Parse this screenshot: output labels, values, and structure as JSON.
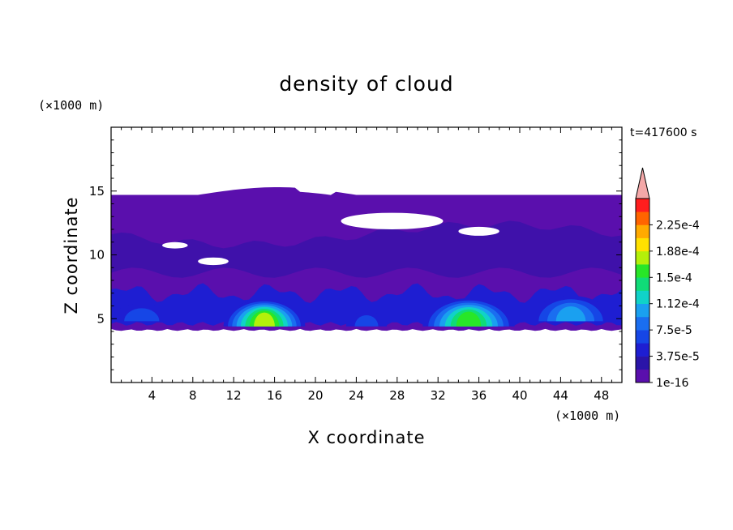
{
  "chart_data": {
    "type": "heatmap",
    "title": "density of cloud",
    "time_label": "t=417600 s",
    "xlabel": "X coordinate",
    "ylabel": "Z coordinate",
    "x_unit": "(×1000 m)",
    "y_unit": "(×1000 m)",
    "xlim": [
      0,
      50
    ],
    "ylim": [
      0,
      20
    ],
    "x_ticks": [
      4,
      8,
      12,
      16,
      20,
      24,
      28,
      32,
      36,
      40,
      44,
      48
    ],
    "x_tick_labels": [
      "4",
      "8",
      "12",
      "16",
      "20",
      "24",
      "28",
      "32",
      "36",
      "40",
      "44",
      "48"
    ],
    "y_ticks": [
      5,
      10,
      15
    ],
    "y_tick_labels": [
      "5",
      "10",
      "15"
    ],
    "grid": false,
    "colorbar": {
      "levels": [
        1e-16,
        1.875e-05,
        3.75e-05,
        5.625e-05,
        7.5e-05,
        9.375e-05,
        0.0001125,
        0.00013125,
        0.00015,
        0.00016875,
        0.0001875,
        0.00020625,
        0.000225,
        0.00024375
      ],
      "labels": [
        "1e-16",
        "3.75e-5",
        "7.5e-5",
        "1.12e-4",
        "1.5e-4",
        "1.88e-4",
        "2.25e-4"
      ],
      "label_levels": [
        0,
        2,
        4,
        6,
        8,
        10,
        12
      ],
      "colors": [
        "#5a0fad",
        "#2a14a8",
        "#1e1ed2",
        "#1646e6",
        "#1a6ef0",
        "#1aa0f0",
        "#10d2c8",
        "#10dc78",
        "#28e628",
        "#b4f00a",
        "#ffe100",
        "#ffaa00",
        "#ff6400",
        "#ff1e1e"
      ],
      "overflow_color": "#f4a8a8"
    },
    "cloud_layer": {
      "base_km": 4.2,
      "top_km": 14.7,
      "clear_gaps": [
        {
          "x": [
            22.5,
            32.5
          ],
          "z": [
            12.0,
            13.3
          ]
        },
        {
          "x": [
            34.0,
            38.0
          ],
          "z": [
            11.5,
            12.2
          ]
        },
        {
          "x": [
            5.0,
            7.5
          ],
          "z": [
            10.5,
            11.0
          ]
        },
        {
          "x": [
            8.5,
            11.5
          ],
          "z": [
            9.2,
            9.8
          ]
        }
      ],
      "dense_cores": [
        {
          "x_center": 15,
          "half_width": 4.0,
          "z_base": 4.4,
          "z_top": 6.5,
          "peak": 0.00017
        },
        {
          "x_center": 25,
          "half_width": 2.0,
          "z_base": 4.4,
          "z_top": 5.6,
          "peak": 6e-05
        },
        {
          "x_center": 35,
          "half_width": 4.5,
          "z_base": 4.4,
          "z_top": 6.6,
          "peak": 0.00016
        },
        {
          "x_center": 45,
          "half_width": 4.0,
          "z_base": 4.8,
          "z_top": 6.8,
          "peak": 0.00011
        },
        {
          "x_center": 3,
          "half_width": 3.0,
          "z_base": 4.8,
          "z_top": 6.2,
          "peak": 6e-05
        }
      ]
    }
  }
}
